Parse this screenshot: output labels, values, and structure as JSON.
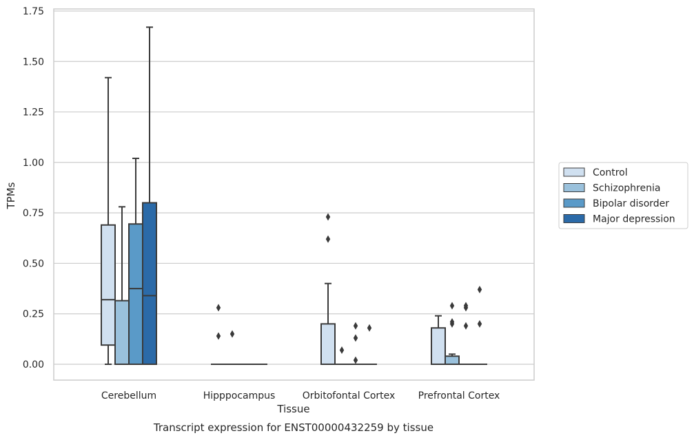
{
  "chart_data": {
    "type": "box",
    "xlabel": "Tissue",
    "ylabel": "TPMs",
    "caption": "Transcript expression for ENST00000432259 by tissue",
    "ylim": [
      -0.08,
      1.76
    ],
    "yticks": [
      0.0,
      0.25,
      0.5,
      0.75,
      1.0,
      1.25,
      1.5,
      1.75
    ],
    "ytick_labels": [
      "0.00",
      "0.25",
      "0.50",
      "0.75",
      "1.00",
      "1.25",
      "1.50",
      "1.75"
    ],
    "grid": "horizontal",
    "legend_position": "right-center",
    "categories": [
      "Cerebellum",
      "Hipppocampus",
      "Orbitofontal Cortex",
      "Prefrontal Cortex"
    ],
    "series": [
      {
        "name": "Control",
        "color": "#d0e0f0",
        "boxes": [
          {
            "whisker_low": 0.0,
            "q1": 0.095,
            "median": 0.32,
            "q3": 0.69,
            "whisker_high": 1.42,
            "outliers": []
          },
          {
            "whisker_low": 0.0,
            "q1": 0.0,
            "median": 0.0,
            "q3": 0.0,
            "whisker_high": 0.0,
            "outliers": [
              0.14,
              0.28
            ]
          },
          {
            "whisker_low": 0.0,
            "q1": 0.0,
            "median": 0.0,
            "q3": 0.2,
            "whisker_high": 0.4,
            "outliers": [
              0.62,
              0.73
            ]
          },
          {
            "whisker_low": 0.0,
            "q1": 0.0,
            "median": 0.0,
            "q3": 0.18,
            "whisker_high": 0.24,
            "outliers": []
          }
        ]
      },
      {
        "name": "Schizophrenia",
        "color": "#9ac1dc",
        "boxes": [
          {
            "whisker_low": 0.0,
            "q1": 0.0,
            "median": 0.0,
            "q3": 0.315,
            "whisker_high": 0.78,
            "outliers": []
          },
          {
            "whisker_low": 0.0,
            "q1": 0.0,
            "median": 0.0,
            "q3": 0.0,
            "whisker_high": 0.0,
            "outliers": [
              0.15
            ]
          },
          {
            "whisker_low": 0.0,
            "q1": 0.0,
            "median": 0.0,
            "q3": 0.0,
            "whisker_high": 0.0,
            "outliers": [
              0.07
            ]
          },
          {
            "whisker_low": 0.0,
            "q1": 0.0,
            "median": 0.0,
            "q3": 0.04,
            "whisker_high": 0.05,
            "outliers": [
              0.2,
              0.21,
              0.29
            ]
          }
        ]
      },
      {
        "name": "Bipolar disorder",
        "color": "#5a9ac8",
        "boxes": [
          {
            "whisker_low": 0.0,
            "q1": 0.0,
            "median": 0.375,
            "q3": 0.695,
            "whisker_high": 1.02,
            "outliers": []
          },
          {
            "whisker_low": 0.0,
            "q1": 0.0,
            "median": 0.0,
            "q3": 0.0,
            "whisker_high": 0.0,
            "outliers": []
          },
          {
            "whisker_low": 0.0,
            "q1": 0.0,
            "median": 0.0,
            "q3": 0.0,
            "whisker_high": 0.0,
            "outliers": [
              0.02,
              0.13,
              0.19
            ]
          },
          {
            "whisker_low": 0.0,
            "q1": 0.0,
            "median": 0.0,
            "q3": 0.0,
            "whisker_high": 0.0,
            "outliers": [
              0.19,
              0.28,
              0.29
            ]
          }
        ]
      },
      {
        "name": "Major depression",
        "color": "#2b6aa8",
        "boxes": [
          {
            "whisker_low": 0.0,
            "q1": 0.0,
            "median": 0.34,
            "q3": 0.8,
            "whisker_high": 1.67,
            "outliers": []
          },
          {
            "whisker_low": 0.0,
            "q1": 0.0,
            "median": 0.0,
            "q3": 0.0,
            "whisker_high": 0.0,
            "outliers": []
          },
          {
            "whisker_low": 0.0,
            "q1": 0.0,
            "median": 0.0,
            "q3": 0.0,
            "whisker_high": 0.0,
            "outliers": [
              0.18
            ]
          },
          {
            "whisker_low": 0.0,
            "q1": 0.0,
            "median": 0.0,
            "q3": 0.0,
            "whisker_high": 0.0,
            "outliers": [
              0.2,
              0.37
            ]
          }
        ]
      }
    ]
  }
}
